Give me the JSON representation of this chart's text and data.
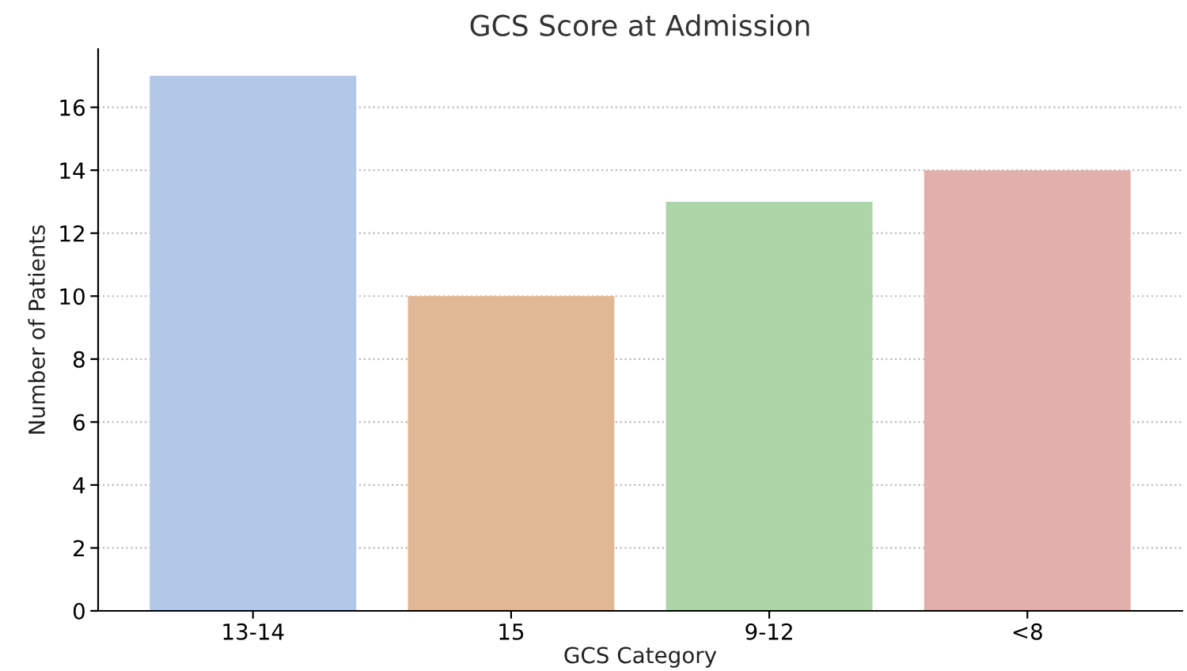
{
  "chart_data": {
    "type": "bar",
    "title": "GCS Score at Admission",
    "xlabel": "GCS Category",
    "ylabel": "Number of Patients",
    "categories": [
      "13-14",
      "15",
      "9-12",
      "<8"
    ],
    "values": [
      17,
      10,
      13,
      14
    ],
    "colors": [
      "#b3c8e8",
      "#e1b895",
      "#acd6a7",
      "#e1b0aa"
    ],
    "ylim": [
      0,
      17.85
    ],
    "yticks": [
      0,
      2,
      4,
      6,
      8,
      10,
      12,
      14,
      16
    ],
    "grid": "y"
  }
}
